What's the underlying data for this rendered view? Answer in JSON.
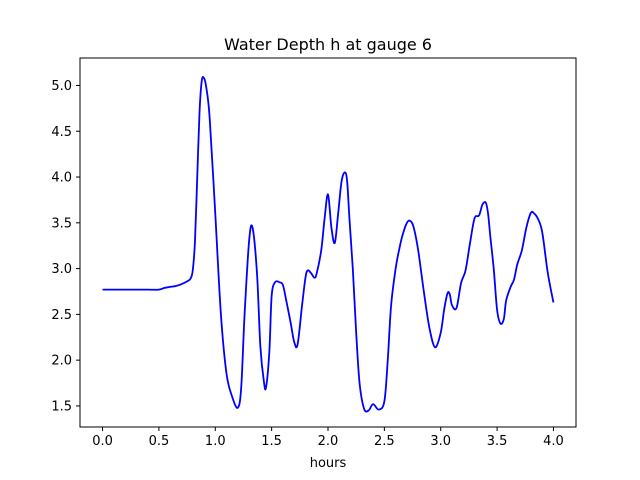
{
  "chart_data": {
    "type": "line",
    "title": "Water Depth h at gauge 6",
    "xlabel": "hours",
    "ylabel": "",
    "xlim": [
      -0.2,
      4.2
    ],
    "ylim": [
      1.27,
      5.3
    ],
    "xticks": [
      0.0,
      0.5,
      1.0,
      1.5,
      2.0,
      2.5,
      3.0,
      3.5,
      4.0
    ],
    "xtick_labels": [
      "0.0",
      "0.5",
      "1.0",
      "1.5",
      "2.0",
      "2.5",
      "3.0",
      "3.5",
      "4.0"
    ],
    "yticks": [
      1.5,
      2.0,
      2.5,
      3.0,
      3.5,
      4.0,
      4.5,
      5.0
    ],
    "ytick_labels": [
      "1.5",
      "2.0",
      "2.5",
      "3.0",
      "3.5",
      "4.0",
      "4.5",
      "5.0"
    ],
    "grid": false,
    "series": [
      {
        "color": "#0000ff",
        "x": [
          0.0,
          0.2,
          0.4,
          0.5,
          0.55,
          0.6,
          0.65,
          0.7,
          0.75,
          0.78,
          0.8,
          0.82,
          0.84,
          0.86,
          0.88,
          0.9,
          0.92,
          0.95,
          1.0,
          1.05,
          1.1,
          1.15,
          1.2,
          1.23,
          1.26,
          1.3,
          1.33,
          1.37,
          1.4,
          1.43,
          1.45,
          1.48,
          1.5,
          1.53,
          1.57,
          1.6,
          1.63,
          1.67,
          1.7,
          1.73,
          1.77,
          1.8,
          1.82,
          1.85,
          1.88,
          1.9,
          1.94,
          1.97,
          2.0,
          2.03,
          2.06,
          2.09,
          2.12,
          2.15,
          2.17,
          2.19,
          2.22,
          2.25,
          2.28,
          2.32,
          2.36,
          2.4,
          2.45,
          2.5,
          2.53,
          2.56,
          2.6,
          2.63,
          2.66,
          2.7,
          2.73,
          2.76,
          2.8,
          2.85,
          2.9,
          2.95,
          3.0,
          3.03,
          3.06,
          3.08,
          3.1,
          3.14,
          3.18,
          3.22,
          3.26,
          3.3,
          3.34,
          3.37,
          3.4,
          3.42,
          3.44,
          3.47,
          3.5,
          3.53,
          3.56,
          3.58,
          3.62,
          3.65,
          3.68,
          3.72,
          3.76,
          3.8,
          3.83,
          3.86,
          3.9,
          3.95,
          4.0
        ],
        "y": [
          2.77,
          2.77,
          2.77,
          2.77,
          2.79,
          2.8,
          2.81,
          2.83,
          2.86,
          2.89,
          2.98,
          3.3,
          4.0,
          4.7,
          5.05,
          5.08,
          4.98,
          4.65,
          3.6,
          2.5,
          1.85,
          1.6,
          1.48,
          1.7,
          2.5,
          3.3,
          3.45,
          2.95,
          2.15,
          1.78,
          1.7,
          2.1,
          2.7,
          2.85,
          2.85,
          2.82,
          2.65,
          2.4,
          2.2,
          2.17,
          2.6,
          2.9,
          2.98,
          2.95,
          2.9,
          2.95,
          3.2,
          3.55,
          3.81,
          3.45,
          3.28,
          3.6,
          3.95,
          4.05,
          3.95,
          3.55,
          3.0,
          2.3,
          1.75,
          1.47,
          1.45,
          1.52,
          1.46,
          1.55,
          2.0,
          2.6,
          3.0,
          3.2,
          3.36,
          3.5,
          3.52,
          3.45,
          3.2,
          2.75,
          2.35,
          2.14,
          2.3,
          2.55,
          2.73,
          2.72,
          2.6,
          2.57,
          2.84,
          2.98,
          3.28,
          3.55,
          3.58,
          3.7,
          3.72,
          3.6,
          3.35,
          3.0,
          2.55,
          2.4,
          2.45,
          2.65,
          2.8,
          2.88,
          3.05,
          3.2,
          3.45,
          3.61,
          3.6,
          3.55,
          3.4,
          2.95,
          2.63
        ]
      }
    ]
  }
}
